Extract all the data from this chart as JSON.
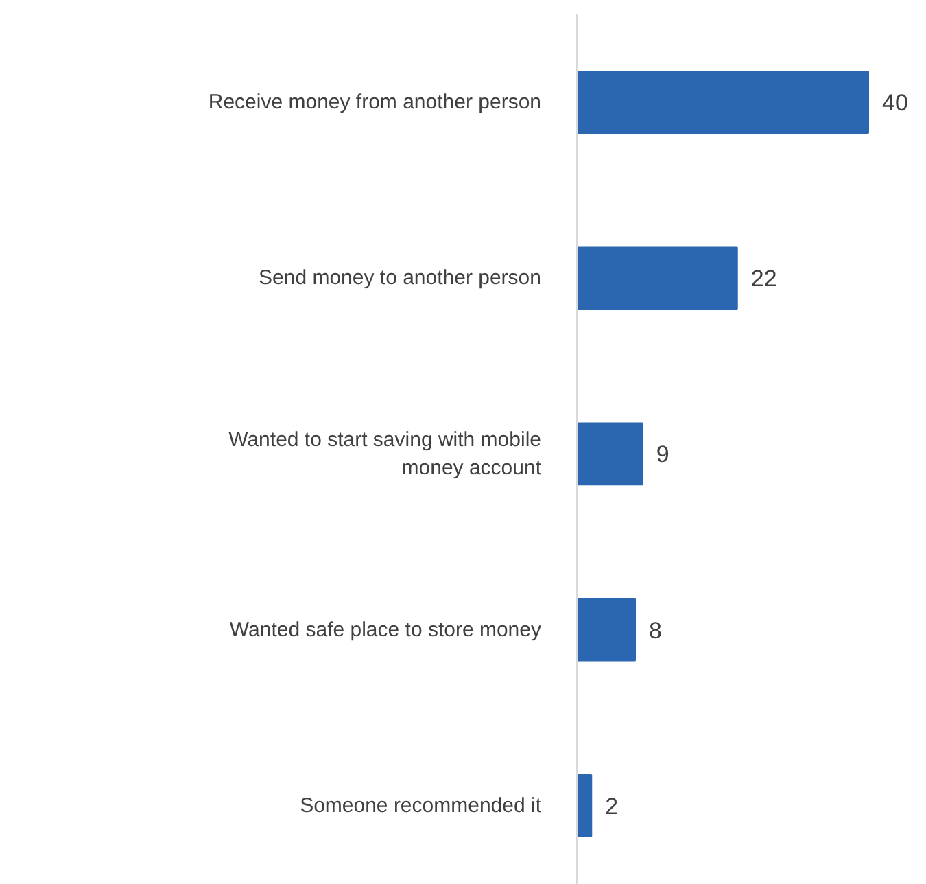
{
  "chart_data": {
    "type": "bar",
    "orientation": "horizontal",
    "data_labels": true,
    "categories": [
      "Receive money from another person",
      "Send money to another person",
      "Wanted to start saving with mobile money account",
      "Wanted safe place to store money",
      "Someone recommended it"
    ],
    "values": [
      40,
      22,
      9,
      8,
      2
    ],
    "color": "#2a67b0"
  }
}
